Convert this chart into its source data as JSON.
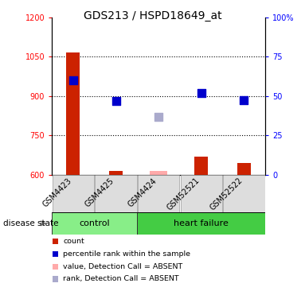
{
  "title": "GDS213 / HSPD18649_at",
  "samples": [
    "GSM4423",
    "GSM4425",
    "GSM4424",
    "GSM52521",
    "GSM52522"
  ],
  "groups": [
    "control",
    "control",
    "heart failure",
    "heart failure",
    "heart failure"
  ],
  "bar_values": [
    1065,
    615,
    null,
    670,
    645
  ],
  "bar_absent_values": [
    null,
    null,
    615,
    null,
    null
  ],
  "dot_values": [
    960,
    880,
    null,
    910,
    885
  ],
  "dot_absent_values": [
    null,
    null,
    820,
    null,
    null
  ],
  "bar_color": "#cc2200",
  "bar_absent_color": "#ffaaaa",
  "dot_color": "#0000cc",
  "dot_absent_color": "#aaaacc",
  "ylim_left": [
    600,
    1200
  ],
  "ylim_right": [
    0,
    100
  ],
  "right_ticks": [
    0,
    25,
    50,
    75,
    100
  ],
  "right_tick_labels": [
    "0",
    "25",
    "50",
    "75",
    "100%"
  ],
  "left_ticks": [
    600,
    750,
    900,
    1050,
    1200
  ],
  "dotted_lines": [
    750,
    900,
    1050
  ],
  "group_label": "disease state",
  "control_color": "#88ee88",
  "hf_color": "#44cc44",
  "legend_items": [
    {
      "label": "count",
      "color": "#cc2200"
    },
    {
      "label": "percentile rank within the sample",
      "color": "#0000cc"
    },
    {
      "label": "value, Detection Call = ABSENT",
      "color": "#ffaaaa"
    },
    {
      "label": "rank, Detection Call = ABSENT",
      "color": "#aaaacc"
    }
  ],
  "bar_width": 0.32,
  "dot_size": 45,
  "title_fontsize": 10,
  "tick_fontsize": 7,
  "label_fontsize": 7.5,
  "xtick_fontsize": 7,
  "legend_fontsize": 6.8,
  "group_fontsize": 8
}
